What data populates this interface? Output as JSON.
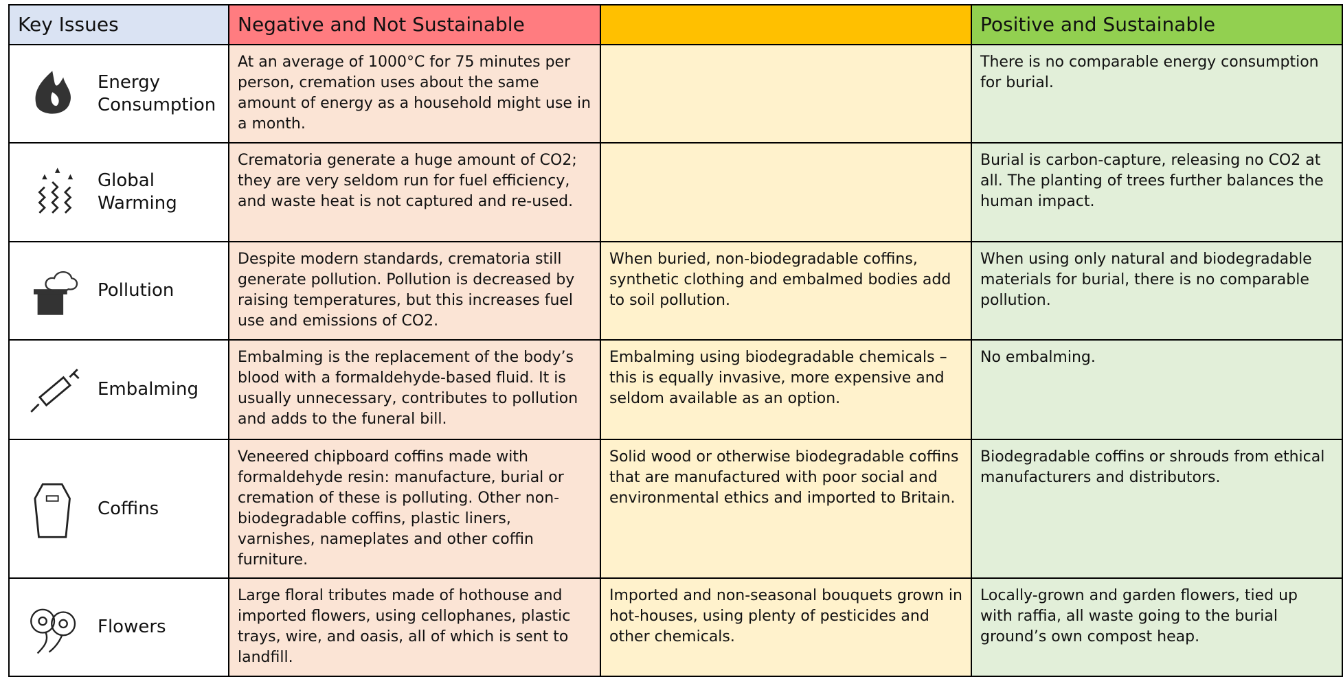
{
  "header": {
    "key": "Key Issues",
    "negative": "Negative and Not Sustainable",
    "positive": "Positive and Sustainable"
  },
  "rows": [
    {
      "issue": "Energy Consumption",
      "negative": "At an average of 1000°C for 75 minutes per person, cremation uses about the same amount of energy as a household might use in a month.",
      "middle": null,
      "positive": "There is no comparable energy consumption for burial."
    },
    {
      "issue": "Global Warming",
      "negative": "Crematoria generate a huge amount of CO2; they are very seldom run for fuel efficiency, and waste heat is not captured and re-used.",
      "middle": null,
      "positive": "Burial is carbon-capture, releasing no CO2 at all.  The planting of trees further balances the human impact."
    },
    {
      "issue": "Pollution",
      "negative": "Despite modern standards, crematoria still generate pollution.  Pollution is decreased by raising temperatures, but this increases fuel use and emissions of CO2.",
      "middle": "When buried, non-biodegradable coffins, synthetic clothing and embalmed bodies add to soil pollution.",
      "positive": "When using only natural and biodegradable materials for burial, there is no comparable pollution."
    },
    {
      "issue": "Embalming",
      "negative": "Embalming is the replacement of the body’s blood with a formaldehyde-based fluid.  It is usually unnecessary, contributes to pollution and adds to the funeral bill.",
      "middle": "Embalming using biodegradable chemicals – this is equally invasive, more expensive and seldom available as an option.",
      "positive": "No embalming."
    },
    {
      "issue": "Coffins",
      "negative": "Veneered chipboard coffins made with formaldehyde resin: manufacture, burial or cremation of these is polluting. Other non-biodegradable coffins, plastic liners, varnishes, nameplates and other coffin furniture.",
      "middle": "Solid wood or otherwise biodegradable coffins that are manufactured with poor social and environmental ethics and imported to Britain.",
      "positive": "Biodegradable coffins or shrouds from ethical manufacturers and distributors."
    },
    {
      "issue": "Flowers",
      "negative": "Large floral tributes made of hothouse and imported flowers, using cellophanes, plastic trays, wire, and oasis, all of which is sent to landfill.",
      "middle": "Imported and non-seasonal bouquets grown in hot-houses, using plenty of pesticides and other chemicals.",
      "positive": "Locally-grown and garden flowers, tied up with raffia, all waste going to the burial ground’s own compost heap."
    }
  ]
}
